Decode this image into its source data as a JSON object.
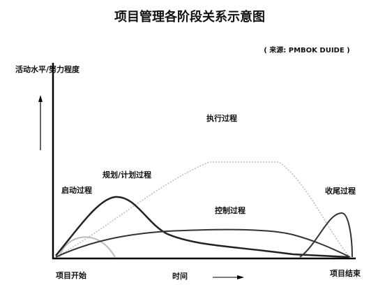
{
  "title": "项目管理各阶段关系示意图",
  "source": "( 来源: PMBOK DUIDE )",
  "y_axis_label": "活动水平/努力程度",
  "processes": {
    "executing": "执行过程",
    "planning": "规划/计划过程",
    "initiating": "启动过程",
    "controlling": "控制过程",
    "closing": "收尾过程"
  },
  "x_axis": {
    "start": "项目开始",
    "label": "时间",
    "end": "项目结束"
  }
}
